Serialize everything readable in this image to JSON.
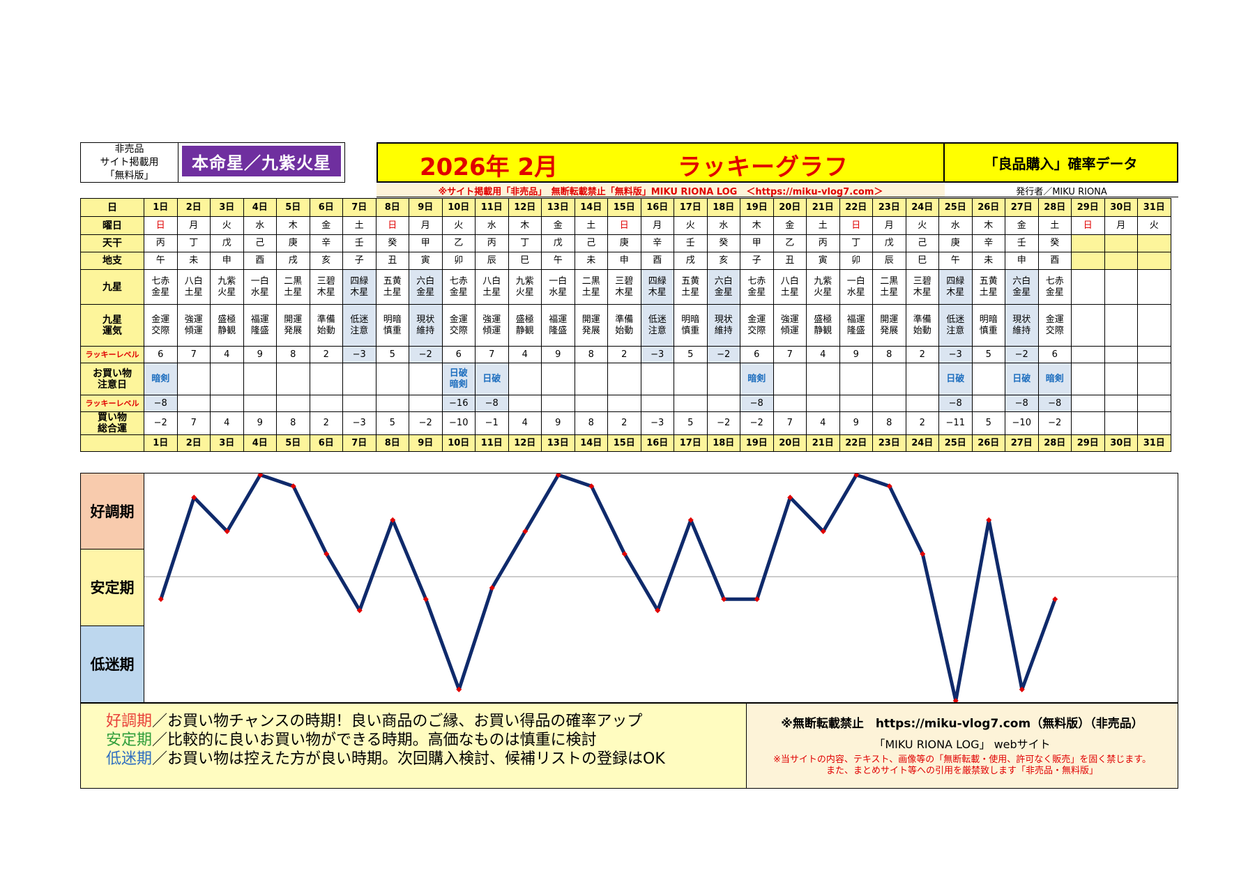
{
  "header": {
    "left_lines": [
      "非売品",
      "サイト掲載用",
      "「無料版」"
    ],
    "honmei": "本命星／九紫火星",
    "title_month": "2026年 2月",
    "title_main": "ラッキーグラフ",
    "right_title": "「良品購入」確率データ",
    "sub_line": "※サイト掲載用「非売品」　無断転載禁止「無料版」MIKU RIONA LOG　＜https://miku-vlog7.com＞",
    "publisher": "発行者／MIKU RIONA"
  },
  "row_labels": {
    "day": "日",
    "weekday": "曜日",
    "tenkan": "天干",
    "chishi": "地支",
    "kyusei": "九星",
    "kyusei_unki": "九星\n運気",
    "lucky_level": "ラッキーレベル",
    "caution": "お買い物\n注意日",
    "lucky_level2": "ラッキーレベル",
    "total": "買い物\n総合運"
  },
  "days": [
    "1日",
    "2日",
    "3日",
    "4日",
    "5日",
    "6日",
    "7日",
    "8日",
    "9日",
    "10日",
    "11日",
    "12日",
    "13日",
    "14日",
    "15日",
    "16日",
    "17日",
    "18日",
    "19日",
    "20日",
    "21日",
    "22日",
    "23日",
    "24日",
    "25日",
    "26日",
    "27日",
    "28日",
    "29日",
    "30日",
    "31日"
  ],
  "weekdays": [
    "日",
    "月",
    "火",
    "水",
    "木",
    "金",
    "土",
    "日",
    "月",
    "火",
    "水",
    "木",
    "金",
    "土",
    "日",
    "月",
    "火",
    "水",
    "木",
    "金",
    "土",
    "日",
    "月",
    "火",
    "水",
    "木",
    "金",
    "土",
    "日",
    "月",
    "火"
  ],
  "tenkan": [
    "丙",
    "丁",
    "戊",
    "己",
    "庚",
    "辛",
    "壬",
    "癸",
    "甲",
    "乙",
    "丙",
    "丁",
    "戊",
    "己",
    "庚",
    "辛",
    "壬",
    "癸",
    "甲",
    "乙",
    "丙",
    "丁",
    "戊",
    "己",
    "庚",
    "辛",
    "壬",
    "癸",
    "",
    "",
    ""
  ],
  "chishi": [
    "午",
    "未",
    "申",
    "酉",
    "戌",
    "亥",
    "子",
    "丑",
    "寅",
    "卯",
    "辰",
    "巳",
    "午",
    "未",
    "申",
    "酉",
    "戌",
    "亥",
    "子",
    "丑",
    "寅",
    "卯",
    "辰",
    "巳",
    "午",
    "未",
    "申",
    "酉",
    "",
    "",
    ""
  ],
  "kyusei": [
    "七赤\n金星",
    "八白\n土星",
    "九紫\n火星",
    "一白\n水星",
    "二黒\n土星",
    "三碧\n木星",
    "四緑\n木星",
    "五黄\n土星",
    "六白\n金星",
    "七赤\n金星",
    "八白\n土星",
    "九紫\n火星",
    "一白\n水星",
    "二黒\n土星",
    "三碧\n木星",
    "四緑\n木星",
    "五黄\n土星",
    "六白\n金星",
    "七赤\n金星",
    "八白\n土星",
    "九紫\n火星",
    "一白\n水星",
    "二黒\n土星",
    "三碧\n木星",
    "四緑\n木星",
    "五黄\n土星",
    "六白\n金星",
    "七赤\n金星",
    "",
    "",
    ""
  ],
  "unki": [
    "金運\n交際",
    "強運\n傾運",
    "盛極\n静観",
    "福運\n隆盛",
    "開運\n発展",
    "準備\n始動",
    "低迷\n注意",
    "明暗\n慎重",
    "現状\n維持",
    "金運\n交際",
    "強運\n傾運",
    "盛極\n静観",
    "福運\n隆盛",
    "開運\n発展",
    "準備\n始動",
    "低迷\n注意",
    "明暗\n慎重",
    "現状\n維持",
    "金運\n交際",
    "強運\n傾運",
    "盛極\n静観",
    "福運\n隆盛",
    "開運\n発展",
    "準備\n始動",
    "低迷\n注意",
    "明暗\n慎重",
    "現状\n維持",
    "金運\n交際",
    "",
    "",
    ""
  ],
  "lucky_level": [
    "6",
    "7",
    "4",
    "9",
    "8",
    "2",
    "−3",
    "5",
    "−2",
    "6",
    "7",
    "4",
    "9",
    "8",
    "2",
    "−3",
    "5",
    "−2",
    "6",
    "7",
    "4",
    "9",
    "8",
    "2",
    "−3",
    "5",
    "−2",
    "6",
    "",
    "",
    ""
  ],
  "caution": [
    "暗剣",
    "",
    "",
    "",
    "",
    "",
    "",
    "",
    "",
    "日破\n暗剣",
    "日破",
    "",
    "",
    "",
    "",
    "",
    "",
    "",
    "暗剣",
    "",
    "",
    "",
    "",
    "",
    "日破",
    "",
    "日破",
    "暗剣",
    "",
    "",
    ""
  ],
  "lucky_level2": [
    "−8",
    "",
    "",
    "",
    "",
    "",
    "",
    "",
    "",
    "−16",
    "−8",
    "",
    "",
    "",
    "",
    "",
    "",
    "",
    "−8",
    "",
    "",
    "",
    "",
    "",
    "−8",
    "",
    "−8",
    "−8",
    "",
    "",
    ""
  ],
  "total": [
    "−2",
    "7",
    "4",
    "9",
    "8",
    "2",
    "−3",
    "5",
    "−2",
    "−10",
    "−1",
    "4",
    "9",
    "8",
    "2",
    "−3",
    "5",
    "−2",
    "−2",
    "7",
    "4",
    "9",
    "8",
    "2",
    "−11",
    "5",
    "−10",
    "−2",
    "",
    "",
    ""
  ],
  "zones": [
    "好調期",
    "安定期",
    "低迷期"
  ],
  "colors": {
    "good": "#f8cbad",
    "stable": "#fff5a8",
    "low": "#bdd7ee",
    "line": "#0f2a6b",
    "marker": "#e00000",
    "header_yellow": "#ffff00",
    "badge": "#6f2f9f"
  },
  "chart_data": {
    "type": "line",
    "x": [
      "1日",
      "2日",
      "3日",
      "4日",
      "5日",
      "6日",
      "7日",
      "8日",
      "9日",
      "10日",
      "11日",
      "12日",
      "13日",
      "14日",
      "15日",
      "16日",
      "17日",
      "18日",
      "19日",
      "20日",
      "21日",
      "22日",
      "23日",
      "24日",
      "25日",
      "26日",
      "27日",
      "28日"
    ],
    "series": [
      {
        "values": [
          -2,
          7,
          4,
          9,
          8,
          2,
          -3,
          5,
          -2,
          -10,
          -1,
          4,
          9,
          8,
          2,
          -3,
          5,
          -2,
          -2,
          7,
          4,
          9,
          8,
          2,
          -11,
          5,
          -10,
          -2
        ]
      }
    ],
    "ylim": [
      -11,
      9
    ],
    "bands": [
      "好調期",
      "安定期",
      "低迷期"
    ]
  },
  "footer": {
    "legend": [
      {
        "term": "好調期",
        "text": "／お買い物チャンスの時期！良い商品のご縁、お買い得品の確率アップ",
        "color": "#e8413a"
      },
      {
        "term": "安定期",
        "text": "／比較的に良いお買い物ができる時期。高価なものは慎重に検討",
        "color": "#2f9e3b"
      },
      {
        "term": "低迷期",
        "text": "／お買い物は控えた方が良い時期。次回購入検討、候補リストの登録はOK",
        "color": "#2f6fc0"
      }
    ],
    "notice1": "※無断転載禁止　https://miku-vlog7.com（無料版）（非売品）",
    "notice2": "「MIKU RIONA LOG」 webサイト",
    "notice3": "※当サイトの内容、テキスト、画像等の「無断転載・使用、許可なく販売」を固く禁じます。",
    "notice4": "また、まとめサイト等への引用を厳禁致します「非売品・無料版」"
  }
}
